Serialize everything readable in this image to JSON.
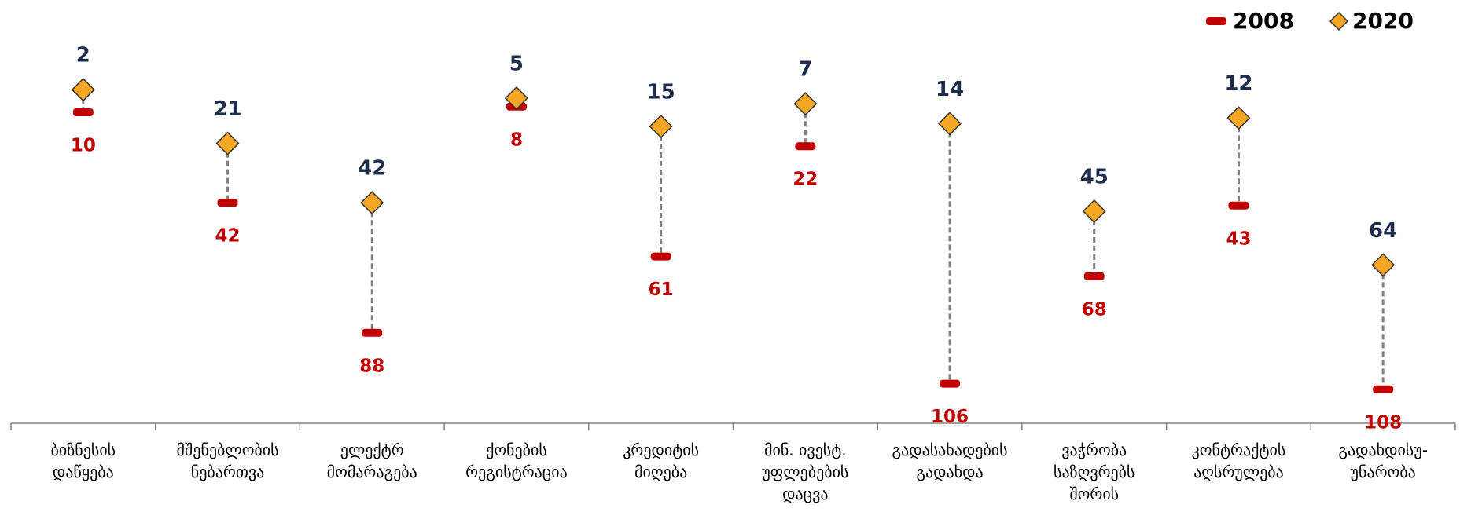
{
  "chart_data": {
    "type": "dumbbell",
    "categories": [
      "ბიზნესის\nდაწყება",
      "მშენებლობის\nნებართვა",
      "ელექტრ\nმომარაგება",
      "ქონების\nრეგისტრაცია",
      "კრედიტის\nმიღება",
      "მინ. ივესტ.\nუფლებების\nდაცვა",
      "გადასახადების\nგადახდა",
      "ვაჭრობა\nსაზღვრებს\nშორის",
      "კონტრაქტის\nაღსრულება",
      "გადახდისუ-\nუნარობა"
    ],
    "series": [
      {
        "name": "2008",
        "color": "#c00000",
        "values": [
          10,
          42,
          88,
          8,
          61,
          22,
          106,
          68,
          43,
          108
        ]
      },
      {
        "name": "2020",
        "color": "#f5a623",
        "values": [
          2,
          21,
          42,
          5,
          15,
          7,
          14,
          45,
          12,
          64
        ]
      }
    ],
    "ylim": [
      0,
      120
    ],
    "yreverse": true,
    "legend": "top-right"
  }
}
